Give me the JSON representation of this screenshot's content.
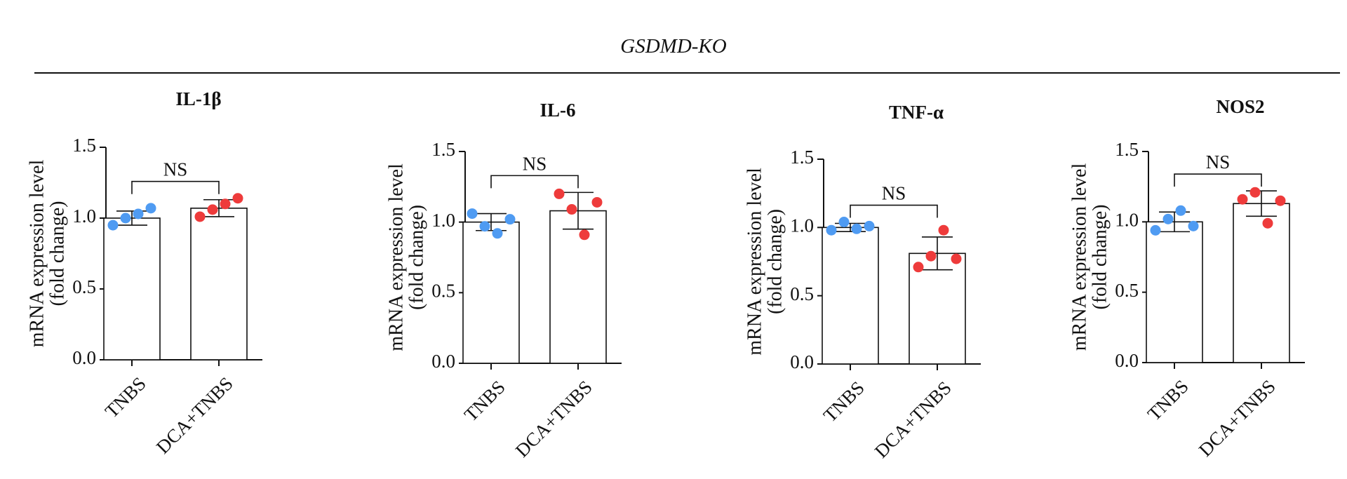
{
  "header": {
    "title": "GSDMD-KO"
  },
  "colors": {
    "group1": "#4f9bf2",
    "group2": "#ee3b3b",
    "axis": "#111111"
  },
  "chart_data": [
    {
      "type": "bar",
      "title": "IL-1β",
      "categories": [
        "TNBS",
        "DCA+TNBS"
      ],
      "values": [
        1.0,
        1.07
      ],
      "error": [
        0.05,
        0.06
      ],
      "points": [
        [
          0.95,
          1.0,
          1.03,
          1.07
        ],
        [
          1.01,
          1.06,
          1.1,
          1.14
        ]
      ],
      "ylabel": [
        "mRNA expression level",
        "(fold change)"
      ],
      "ylim": [
        0,
        1.5
      ],
      "yticks": [
        "0.0",
        "0.5",
        "1.0",
        "1.5"
      ],
      "significance": "NS"
    },
    {
      "type": "bar",
      "title": "IL-6",
      "categories": [
        "TNBS",
        "DCA+TNBS"
      ],
      "values": [
        1.0,
        1.08
      ],
      "error": [
        0.06,
        0.13
      ],
      "points": [
        [
          1.06,
          0.97,
          0.92,
          1.02
        ],
        [
          1.2,
          1.09,
          0.91,
          1.14
        ]
      ],
      "ylabel": [
        "mRNA expression level",
        "(fold change)"
      ],
      "ylim": [
        0,
        1.5
      ],
      "yticks": [
        "0.0",
        "0.5",
        "1.0",
        "1.5"
      ],
      "significance": "NS"
    },
    {
      "type": "bar",
      "title": "TNF-α",
      "categories": [
        "TNBS",
        "DCA+TNBS"
      ],
      "values": [
        1.0,
        0.81
      ],
      "error": [
        0.03,
        0.12
      ],
      "points": [
        [
          0.98,
          1.04,
          0.99,
          1.01
        ],
        [
          0.71,
          0.79,
          0.98,
          0.77
        ]
      ],
      "ylabel": [
        "mRNA expression level",
        "(fold change)"
      ],
      "ylim": [
        0,
        1.5
      ],
      "yticks": [
        "0.0",
        "0.5",
        "1.0",
        "1.5"
      ],
      "significance": "NS"
    },
    {
      "type": "bar",
      "title": "NOS2",
      "categories": [
        "TNBS",
        "DCA+TNBS"
      ],
      "values": [
        1.0,
        1.13
      ],
      "error": [
        0.07,
        0.09
      ],
      "points": [
        [
          0.94,
          1.02,
          1.08,
          0.97
        ],
        [
          1.16,
          1.21,
          0.99,
          1.15
        ]
      ],
      "ylabel": [
        "mRNA expression level",
        "(fold change)"
      ],
      "ylim": [
        0,
        1.5
      ],
      "yticks": [
        "0.0",
        "0.5",
        "1.0",
        "1.5"
      ],
      "significance": "NS"
    }
  ]
}
